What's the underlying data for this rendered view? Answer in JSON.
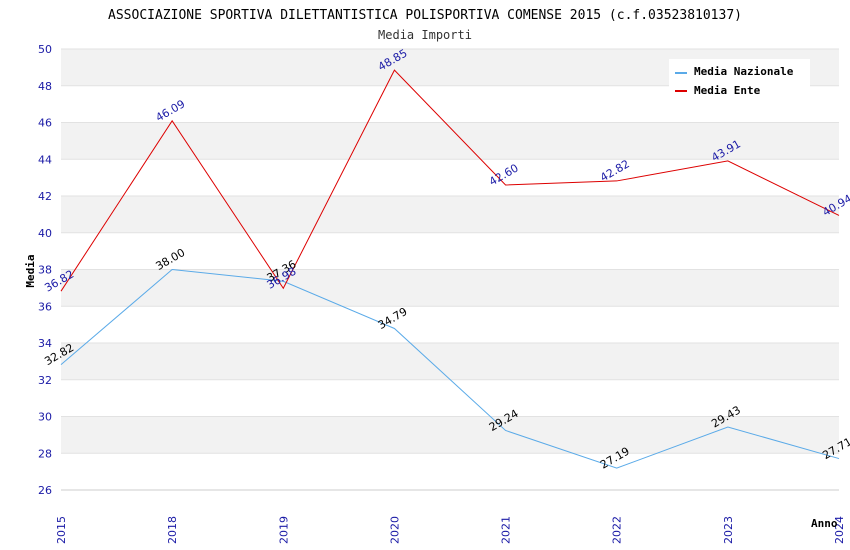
{
  "chart_data": {
    "type": "line",
    "title": "ASSOCIAZIONE SPORTIVA DILETTANTISTICA POLISPORTIVA COMENSE 2015 (c.f.03523810137)",
    "subtitle": "Media Importi",
    "xlabel": "Anno",
    "ylabel": "Media",
    "categories": [
      "2015",
      "2018",
      "2019",
      "2020",
      "2021",
      "2022",
      "2023",
      "2024"
    ],
    "ylim": [
      26,
      50
    ],
    "yticks": [
      "26",
      "28",
      "30",
      "32",
      "34",
      "36",
      "38",
      "40",
      "42",
      "44",
      "46",
      "48",
      "50"
    ],
    "grid": true,
    "legend_position": "top-right",
    "series": [
      {
        "name": "Media Nazionale",
        "color": "#5aaae8",
        "label_color": "#000000",
        "values": [
          32.82,
          38.0,
          37.36,
          34.79,
          29.24,
          27.19,
          29.43,
          27.71
        ],
        "labels": [
          "32.82",
          "38.00",
          "37.36",
          "34.79",
          "29.24",
          "27.19",
          "29.43",
          "27.71"
        ]
      },
      {
        "name": "Media Ente",
        "color": "#dd0000",
        "label_color": "#1a1aa6",
        "values": [
          36.82,
          46.09,
          36.98,
          48.85,
          42.6,
          42.82,
          43.91,
          40.94
        ],
        "labels": [
          "36.82",
          "46.09",
          "36.98",
          "48.85",
          "42.60",
          "42.82",
          "43.91",
          "40.94"
        ]
      }
    ]
  }
}
